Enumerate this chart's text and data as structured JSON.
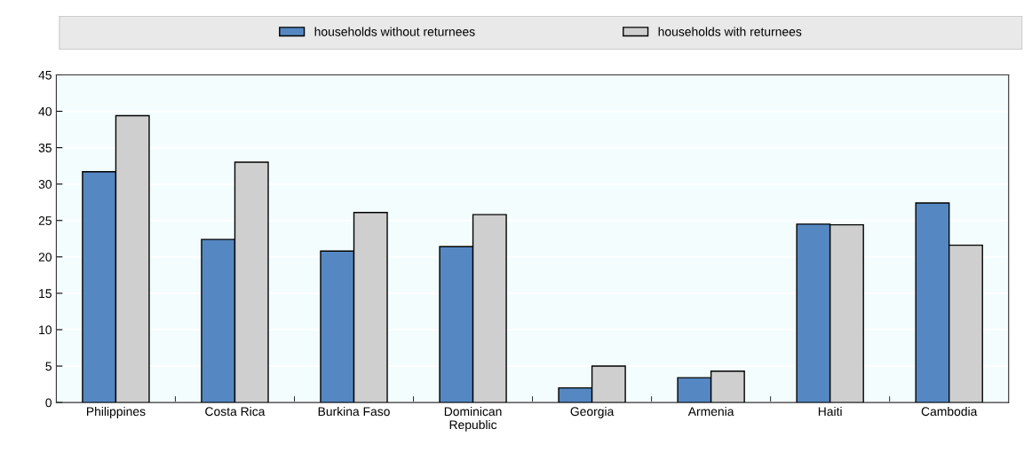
{
  "chart_data": {
    "type": "bar",
    "categories": [
      "Philippines",
      "Costa Rica",
      "Burkina Faso",
      "Dominican\nRepublic",
      "Georgia",
      "Armenia",
      "Haiti",
      "Cambodia"
    ],
    "series": [
      {
        "name": "households without returnees",
        "color": "#5588c2",
        "values": [
          31.7,
          22.4,
          20.8,
          21.4,
          2.0,
          3.4,
          24.5,
          27.4
        ]
      },
      {
        "name": "households with returnees",
        "color": "#cfcfcf",
        "values": [
          39.4,
          33.0,
          26.1,
          25.8,
          5.0,
          4.3,
          24.4,
          21.6
        ]
      }
    ],
    "ylim": [
      0,
      45
    ],
    "yticks": [
      0,
      5,
      10,
      15,
      20,
      25,
      30,
      35,
      40,
      45
    ],
    "grid": "y",
    "legend": "top"
  }
}
